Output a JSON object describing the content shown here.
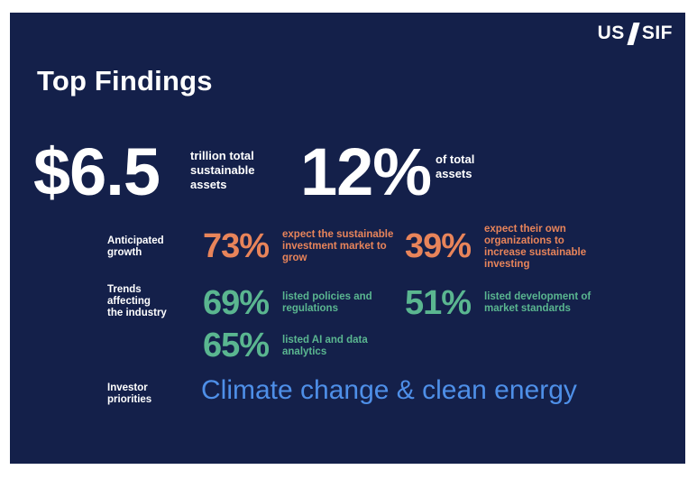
{
  "logo": {
    "left": "US",
    "right": "SIF"
  },
  "title": "Top Findings",
  "headline": {
    "assets_value": "$6.5",
    "assets_caption": [
      "trillion total",
      "sustainable",
      "assets"
    ],
    "share_value": "12%",
    "share_caption": [
      "of total",
      "assets"
    ]
  },
  "rows": {
    "growth": {
      "label": [
        "Anticipated",
        "growth"
      ],
      "items": [
        {
          "pct": "73%",
          "text": [
            "expect the sustainable",
            "investment market to",
            "grow"
          ]
        },
        {
          "pct": "39%",
          "text": [
            "expect their own",
            "organizations to",
            "increase sustainable",
            "investing"
          ]
        }
      ]
    },
    "trends": {
      "label": [
        "Trends",
        "affecting",
        "the industry"
      ],
      "items": [
        {
          "pct": "69%",
          "text": [
            "listed policies and",
            "regulations"
          ]
        },
        {
          "pct": "51%",
          "text": [
            "listed development of",
            "market standards"
          ]
        },
        {
          "pct": "65%",
          "text": [
            "listed AI and data",
            "analytics"
          ]
        }
      ]
    },
    "priorities": {
      "label": [
        "Investor",
        "priorities"
      ],
      "value": "Climate change & clean energy"
    }
  },
  "colors": {
    "background": "#14204a",
    "growth_accent": "#e8845a",
    "trends_accent": "#5ab690",
    "priority_accent": "#4e8fe8"
  }
}
